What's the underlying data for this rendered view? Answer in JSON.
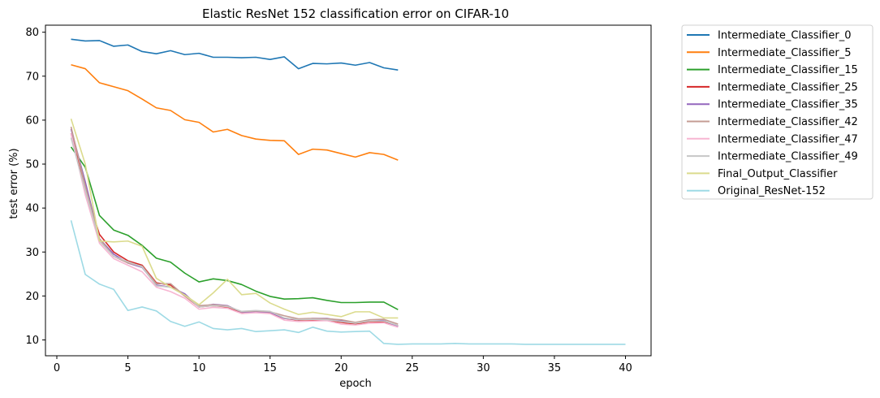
{
  "chart_data": {
    "type": "line",
    "title": "Elastic ResNet 152 classification error on CIFAR-10",
    "xlabel": "epoch",
    "ylabel": "test error (%)",
    "xlim": [
      -0.8,
      41.8
    ],
    "ylim": [
      6.4,
      81.6
    ],
    "xticks": [
      0,
      5,
      10,
      15,
      20,
      25,
      30,
      35,
      40
    ],
    "yticks": [
      10,
      20,
      30,
      40,
      50,
      60,
      70,
      80
    ],
    "grid": false,
    "legend_position": "outside-right",
    "series": [
      {
        "name": "Intermediate_Classifier_0",
        "color": "#1f77b4",
        "x": [
          1,
          2,
          3,
          4,
          5,
          6,
          7,
          8,
          9,
          10,
          11,
          12,
          13,
          14,
          15,
          16,
          17,
          18,
          19,
          20,
          21,
          22,
          23,
          24
        ],
        "y": [
          78.4,
          78.0,
          78.1,
          76.8,
          77.1,
          75.6,
          75.1,
          75.8,
          74.9,
          75.2,
          74.3,
          74.3,
          74.2,
          74.3,
          73.8,
          74.4,
          71.7,
          72.9,
          72.8,
          73.0,
          72.5,
          73.1,
          71.9,
          71.4
        ]
      },
      {
        "name": "Intermediate_Classifier_5",
        "color": "#ff7f0e",
        "x": [
          1,
          2,
          3,
          4,
          5,
          6,
          7,
          8,
          9,
          10,
          11,
          12,
          13,
          14,
          15,
          16,
          17,
          18,
          19,
          20,
          21,
          22,
          23,
          24
        ],
        "y": [
          72.6,
          71.7,
          68.5,
          67.6,
          66.7,
          64.8,
          62.8,
          62.2,
          60.1,
          59.5,
          57.3,
          57.9,
          56.5,
          55.7,
          55.4,
          55.3,
          52.2,
          53.4,
          53.2,
          52.4,
          51.6,
          52.6,
          52.2,
          50.9
        ]
      },
      {
        "name": "Intermediate_Classifier_15",
        "color": "#2ca02c",
        "x": [
          1,
          2,
          3,
          4,
          5,
          6,
          7,
          8,
          9,
          10,
          11,
          12,
          13,
          14,
          15,
          16,
          17,
          18,
          19,
          20,
          21,
          22,
          23,
          24
        ],
        "y": [
          53.9,
          49.3,
          38.3,
          35.0,
          33.8,
          31.5,
          28.6,
          27.7,
          25.2,
          23.2,
          23.9,
          23.5,
          22.6,
          21.1,
          19.9,
          19.3,
          19.4,
          19.6,
          19.0,
          18.5,
          18.5,
          18.6,
          18.6,
          16.9
        ]
      },
      {
        "name": "Intermediate_Classifier_25",
        "color": "#d62728",
        "x": [
          1,
          2,
          3,
          4,
          5,
          6,
          7,
          8,
          9,
          10,
          11,
          12,
          13,
          14,
          15,
          16,
          17,
          18,
          19,
          20,
          21,
          22,
          23,
          24
        ],
        "y": [
          57.0,
          44.0,
          34.0,
          30.0,
          28.0,
          27.0,
          23.0,
          22.5,
          20.0,
          17.5,
          17.8,
          17.5,
          16.2,
          16.5,
          16.2,
          14.9,
          14.5,
          14.6,
          14.5,
          14.0,
          13.6,
          14.2,
          14.1,
          13.2
        ]
      },
      {
        "name": "Intermediate_Classifier_35",
        "color": "#9467bd",
        "x": [
          1,
          2,
          3,
          4,
          5,
          6,
          7,
          8,
          9,
          10,
          11,
          12,
          13,
          14,
          15,
          16,
          17,
          18,
          19,
          20,
          21,
          22,
          23,
          24
        ],
        "y": [
          58.0,
          46.0,
          33.0,
          29.5,
          27.5,
          26.5,
          22.5,
          22.0,
          20.5,
          17.5,
          18.1,
          17.8,
          16.3,
          16.4,
          16.3,
          14.9,
          14.6,
          14.9,
          14.9,
          14.4,
          13.9,
          14.3,
          14.4,
          13.0
        ]
      },
      {
        "name": "Intermediate_Classifier_42",
        "color": "#c49c94",
        "x": [
          1,
          2,
          3,
          4,
          5,
          6,
          7,
          8,
          9,
          10,
          11,
          12,
          13,
          14,
          15,
          16,
          17,
          18,
          19,
          20,
          21,
          22,
          23,
          24
        ],
        "y": [
          58.5,
          45.0,
          33.0,
          29.0,
          27.5,
          26.8,
          22.8,
          22.8,
          20.0,
          17.8,
          18.0,
          17.7,
          16.4,
          16.6,
          16.4,
          15.5,
          14.8,
          14.9,
          14.8,
          14.6,
          14.0,
          14.6,
          14.7,
          13.6
        ]
      },
      {
        "name": "Intermediate_Classifier_47",
        "color": "#f7b6d2",
        "x": [
          1,
          2,
          3,
          4,
          5,
          6,
          7,
          8,
          9,
          10,
          11,
          12,
          13,
          14,
          15,
          16,
          17,
          18,
          19,
          20,
          21,
          22,
          23,
          24
        ],
        "y": [
          57.0,
          43.0,
          32.0,
          28.5,
          27.0,
          25.5,
          22.0,
          21.0,
          19.5,
          17.0,
          17.4,
          17.2,
          16.0,
          16.2,
          16.0,
          14.5,
          14.2,
          14.3,
          14.4,
          13.6,
          13.4,
          13.8,
          13.9,
          12.9
        ]
      },
      {
        "name": "Intermediate_Classifier_49",
        "color": "#c7c7c7",
        "x": [
          1,
          2,
          3,
          4,
          5,
          6,
          7,
          8,
          9,
          10,
          11,
          12,
          13,
          14,
          15,
          16,
          17,
          18,
          19,
          20,
          21,
          22,
          23,
          24
        ],
        "y": [
          56.0,
          44.0,
          32.5,
          29.0,
          27.8,
          26.6,
          22.3,
          22.0,
          20.2,
          17.5,
          17.8,
          17.6,
          16.5,
          16.7,
          16.5,
          15.0,
          14.6,
          14.7,
          14.6,
          14.2,
          13.8,
          14.3,
          14.3,
          13.3
        ]
      },
      {
        "name": "Final_Output_Classifier",
        "color": "#dbdb8d",
        "x": [
          1,
          2,
          3,
          4,
          5,
          6,
          7,
          8,
          9,
          10,
          11,
          12,
          13,
          14,
          15,
          16,
          17,
          18,
          19,
          20,
          21,
          22,
          23,
          24
        ],
        "y": [
          60.3,
          50.0,
          32.5,
          32.3,
          32.5,
          31.3,
          24.0,
          22.0,
          20.2,
          18.0,
          20.7,
          23.8,
          20.3,
          20.6,
          18.4,
          17.0,
          15.8,
          16.3,
          15.8,
          15.3,
          16.4,
          16.4,
          15.0,
          15.0
        ]
      },
      {
        "name": "Original_ResNet-152",
        "color": "#9edae5",
        "x": [
          1,
          2,
          3,
          4,
          5,
          6,
          7,
          8,
          9,
          10,
          11,
          12,
          13,
          14,
          15,
          16,
          17,
          18,
          19,
          20,
          21,
          22,
          23,
          24,
          25,
          26,
          27,
          28,
          29,
          30,
          31,
          32,
          33,
          34,
          35,
          36,
          37,
          38,
          39,
          40
        ],
        "y": [
          37.2,
          24.9,
          22.7,
          21.5,
          16.7,
          17.5,
          16.6,
          14.2,
          13.1,
          14.1,
          12.6,
          12.3,
          12.6,
          11.9,
          12.1,
          12.3,
          11.7,
          12.9,
          12.0,
          11.8,
          11.9,
          12.0,
          9.2,
          9.0,
          9.1,
          9.1,
          9.1,
          9.2,
          9.1,
          9.1,
          9.1,
          9.1,
          9.0,
          9.0,
          9.0,
          9.0,
          9.0,
          9.0,
          9.0,
          9.0
        ]
      }
    ]
  }
}
